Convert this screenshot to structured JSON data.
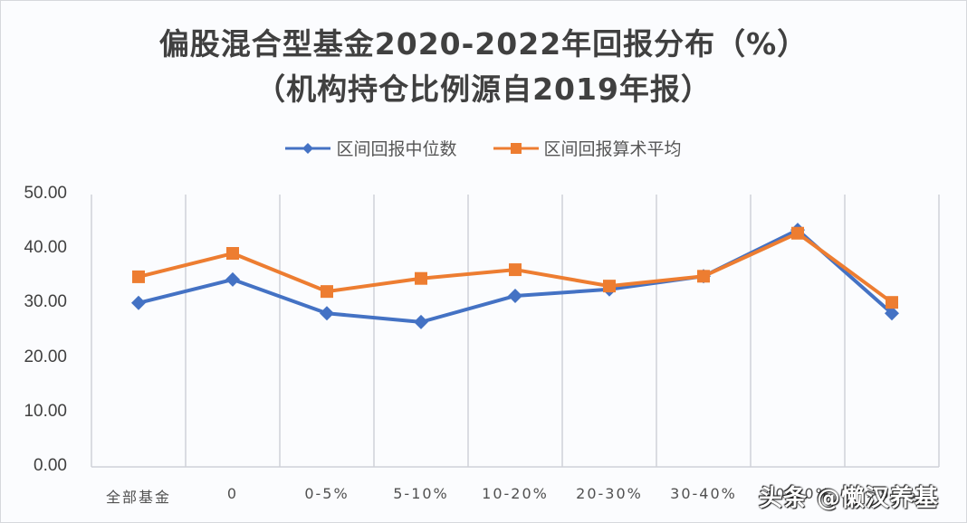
{
  "chart_data": {
    "type": "line",
    "title": "偏股混合型基金2020-2022年回报分布（%）",
    "subtitle": "（机构持仓比例源自2019年报）",
    "xlabel": "",
    "ylabel": "",
    "categories": [
      "全部基金",
      "0",
      "0-5%",
      "5-10%",
      "10-20%",
      "20-30%",
      "30-40%",
      "40-50%",
      ">50%"
    ],
    "series": [
      {
        "name": "区间回报中位数",
        "color": "#4472c4",
        "marker": "diamond",
        "values": [
          30.1,
          34.4,
          28.2,
          26.6,
          31.4,
          32.6,
          35.0,
          43.5,
          28.2
        ]
      },
      {
        "name": "区间回报算术平均",
        "color": "#ed7d31",
        "marker": "square",
        "values": [
          34.9,
          39.2,
          32.2,
          34.6,
          36.2,
          33.2,
          35.0,
          42.9,
          30.2
        ]
      }
    ],
    "ylim": [
      0,
      50
    ],
    "yticks": [
      "0.00",
      "10.00",
      "20.00",
      "30.00",
      "40.00",
      "50.00"
    ],
    "grid": "vertical category separators",
    "legend_position": "top"
  },
  "header": {
    "title_line1": "偏股混合型基金2020-2022年回报分布（%）",
    "title_line2": "（机构持仓比例源自2019年报）"
  },
  "legend": {
    "median_label": "区间回报中位数",
    "mean_label": "区间回报算术平均"
  },
  "axis": {
    "y": [
      "50.00",
      "40.00",
      "30.00",
      "20.00",
      "10.00",
      "0.00"
    ],
    "x": [
      "全部基金",
      "0",
      "0-5%",
      "5-10%",
      "10-20%",
      "20-30%",
      "30-40%",
      "40-50%",
      ">50%"
    ]
  },
  "watermark": "头条 @懒汉养基"
}
